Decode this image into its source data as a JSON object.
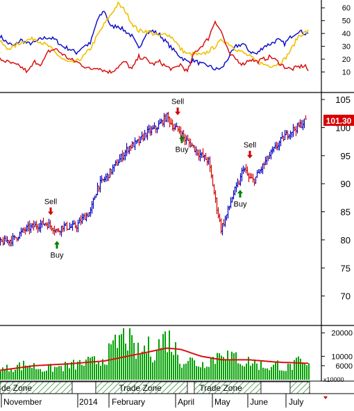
{
  "chart_data": [
    {
      "type": "line",
      "panel": "indicator",
      "ylim": [
        0,
        65
      ],
      "yticks": [
        "10",
        "20",
        "30",
        "40",
        "50",
        "60"
      ],
      "grid": false,
      "series": [
        {
          "color": "#1010c8",
          "x": [
            0,
            10,
            20,
            30,
            40,
            50,
            60,
            70,
            80,
            90,
            100,
            110,
            120,
            130,
            140,
            150,
            160,
            170,
            180,
            190,
            200,
            210,
            220,
            230,
            240,
            250,
            260,
            270,
            280,
            290,
            300,
            310,
            320,
            330,
            340,
            350,
            360,
            370,
            380,
            390,
            400,
            410,
            420,
            430,
            440,
            445
          ],
          "values": [
            38,
            33,
            30,
            35,
            32,
            33,
            36,
            37,
            35,
            30,
            28,
            25,
            30,
            32,
            50,
            58,
            45,
            46,
            42,
            38,
            28,
            40,
            42,
            39,
            33,
            27,
            22,
            18,
            19,
            16,
            15,
            12,
            13,
            22,
            30,
            32,
            26,
            24,
            30,
            32,
            35,
            32,
            38,
            42,
            40,
            41
          ]
        },
        {
          "color": "#f0c000",
          "x": [
            0,
            10,
            20,
            30,
            40,
            50,
            60,
            70,
            80,
            90,
            100,
            110,
            120,
            130,
            140,
            150,
            160,
            170,
            180,
            190,
            200,
            210,
            220,
            230,
            240,
            250,
            260,
            270,
            280,
            290,
            300,
            310,
            320,
            330,
            340,
            350,
            360,
            370,
            380,
            390,
            400,
            410,
            420,
            430,
            440,
            445
          ],
          "values": [
            34,
            28,
            30,
            33,
            35,
            36,
            33,
            30,
            25,
            20,
            17,
            18,
            22,
            28,
            38,
            47,
            55,
            63,
            58,
            48,
            42,
            42,
            40,
            38,
            40,
            36,
            28,
            24,
            24,
            23,
            26,
            30,
            35,
            32,
            28,
            25,
            22,
            18,
            16,
            15,
            16,
            20,
            28,
            38,
            41,
            42
          ]
        },
        {
          "color": "#d81010",
          "x": [
            0,
            10,
            20,
            30,
            40,
            50,
            60,
            70,
            80,
            90,
            100,
            110,
            120,
            130,
            140,
            150,
            160,
            170,
            180,
            190,
            200,
            210,
            220,
            230,
            240,
            250,
            260,
            270,
            280,
            290,
            300,
            310,
            320,
            330,
            340,
            350,
            360,
            370,
            380,
            390,
            400,
            410,
            420,
            430,
            440,
            445
          ],
          "values": [
            20,
            18,
            16,
            14,
            10,
            18,
            16,
            26,
            28,
            24,
            20,
            18,
            15,
            12,
            14,
            11,
            10,
            14,
            18,
            12,
            22,
            20,
            16,
            18,
            14,
            12,
            16,
            10,
            25,
            30,
            36,
            50,
            40,
            24,
            20,
            16,
            20,
            18,
            20,
            22,
            18,
            14,
            12,
            14,
            15,
            10
          ]
        }
      ]
    },
    {
      "type": "candlestick",
      "panel": "price",
      "ylim": [
        65,
        106
      ],
      "yticks": [
        "70",
        "75",
        "80",
        "85",
        "90",
        "95",
        "100",
        "105"
      ],
      "last_value": "101.30",
      "grid": false,
      "anchors": [
        [
          0,
          79.5
        ],
        [
          20,
          80.2
        ],
        [
          35,
          81.8
        ],
        [
          50,
          82.5
        ],
        [
          65,
          83
        ],
        [
          75,
          82.3
        ],
        [
          82,
          81.5
        ],
        [
          90,
          82.5
        ],
        [
          100,
          82.2
        ],
        [
          110,
          82.5
        ],
        [
          120,
          84
        ],
        [
          130,
          85
        ],
        [
          140,
          89.5
        ],
        [
          155,
          91.5
        ],
        [
          170,
          94
        ],
        [
          185,
          96.5
        ],
        [
          200,
          97.5
        ],
        [
          210,
          99
        ],
        [
          225,
          100
        ],
        [
          240,
          102
        ],
        [
          250,
          100
        ],
        [
          258,
          99.5
        ],
        [
          265,
          98
        ],
        [
          275,
          97
        ],
        [
          285,
          95.5
        ],
        [
          300,
          94
        ],
        [
          310,
          87
        ],
        [
          318,
          82
        ],
        [
          325,
          84
        ],
        [
          335,
          88
        ],
        [
          345,
          90.5
        ],
        [
          350,
          93
        ],
        [
          358,
          91
        ],
        [
          365,
          90.5
        ],
        [
          375,
          92.5
        ],
        [
          385,
          94.5
        ],
        [
          400,
          97
        ],
        [
          410,
          98.5
        ],
        [
          420,
          99.5
        ],
        [
          430,
          100.2
        ],
        [
          440,
          101.3
        ]
      ],
      "signals": [
        {
          "type": "sell",
          "label": "Sell",
          "x": 73,
          "price": 84.4
        },
        {
          "type": "buy",
          "label": "Buy",
          "x": 82,
          "price": 79.8
        },
        {
          "type": "sell",
          "label": "Sell",
          "x": 256,
          "price": 102.2
        },
        {
          "type": "buy",
          "label": "Buy",
          "x": 262,
          "price": 98.6
        },
        {
          "type": "sell",
          "label": "Sell",
          "x": 360,
          "price": 94.5
        },
        {
          "type": "buy",
          "label": "Buy",
          "x": 346,
          "price": 88.9
        }
      ]
    },
    {
      "type": "bar",
      "panel": "volume",
      "ylim": [
        0,
        22000
      ],
      "yticks": [
        "6000",
        "10000",
        "20000"
      ],
      "unit_label": "x10000",
      "bars": [
        [
          0,
          4500
        ],
        [
          20,
          6000
        ],
        [
          40,
          7000
        ],
        [
          60,
          5000
        ],
        [
          80,
          5500
        ],
        [
          100,
          6500
        ],
        [
          120,
          7500
        ],
        [
          140,
          8500
        ],
        [
          160,
          13000
        ],
        [
          170,
          18000
        ],
        [
          180,
          22000
        ],
        [
          190,
          14000
        ],
        [
          200,
          12000
        ],
        [
          210,
          15000
        ],
        [
          220,
          13000
        ],
        [
          230,
          17000
        ],
        [
          240,
          20000
        ],
        [
          250,
          15000
        ],
        [
          260,
          9000
        ],
        [
          270,
          9500
        ],
        [
          280,
          8000
        ],
        [
          290,
          7000
        ],
        [
          300,
          9500
        ],
        [
          310,
          10000
        ],
        [
          320,
          16000
        ],
        [
          330,
          9000
        ],
        [
          340,
          11000
        ],
        [
          350,
          8000
        ],
        [
          360,
          8500
        ],
        [
          370,
          7000
        ],
        [
          380,
          6500
        ],
        [
          390,
          5500
        ],
        [
          400,
          7500
        ],
        [
          410,
          5000
        ],
        [
          420,
          6500
        ],
        [
          430,
          8000
        ],
        [
          440,
          6000
        ]
      ],
      "ma": [
        [
          0,
          4000
        ],
        [
          50,
          6000
        ],
        [
          100,
          6800
        ],
        [
          150,
          8000
        ],
        [
          200,
          11000
        ],
        [
          240,
          13500
        ],
        [
          260,
          13000
        ],
        [
          290,
          10000
        ],
        [
          320,
          8500
        ],
        [
          360,
          8500
        ],
        [
          400,
          7500
        ],
        [
          445,
          7000
        ]
      ],
      "ma_color": "#d81010",
      "bar_color": "#00a000"
    }
  ],
  "zones": [
    {
      "label": "Trade Zone",
      "text": "de Zone"
    },
    {
      "label": "Trade Zone",
      "text": "Trade Zone"
    },
    {
      "label": "Trade Zone",
      "text": "Trade Zone"
    }
  ],
  "time_axis": [
    "November",
    "2014",
    "February",
    "April",
    "May",
    "June",
    "July"
  ]
}
